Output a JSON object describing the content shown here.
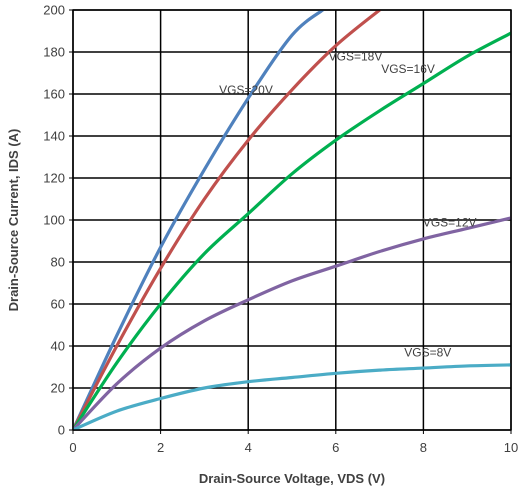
{
  "chart_data": {
    "type": "line",
    "title": "",
    "xlabel": "Drain-Source Voltage, VDS (V)",
    "ylabel": "Drain-Source Current, IDS (A)",
    "xlim": [
      0,
      10
    ],
    "ylim": [
      0,
      200
    ],
    "xticks": [
      0,
      2,
      4,
      6,
      8,
      10
    ],
    "yticks": [
      0,
      20,
      40,
      60,
      80,
      100,
      120,
      140,
      160,
      180,
      200
    ],
    "grid": true,
    "legend": "none",
    "series": [
      {
        "name": "VGS=20V",
        "color": "#4F81BD",
        "x": [
          0,
          1,
          2,
          3,
          4,
          5,
          5.7
        ],
        "y": [
          0,
          45,
          87,
          124,
          158,
          188,
          200
        ]
      },
      {
        "name": "VGS=18V",
        "color": "#C0504D",
        "x": [
          0,
          1,
          2,
          3,
          4,
          5,
          6,
          7
        ],
        "y": [
          0,
          40,
          77,
          110,
          138,
          162,
          183,
          200
        ]
      },
      {
        "name": "VGS=16V",
        "color": "#00B050",
        "x": [
          0,
          1,
          2,
          3,
          4,
          5,
          6,
          7,
          8,
          9,
          10
        ],
        "y": [
          0,
          32,
          60,
          84,
          103,
          122,
          138,
          152,
          165,
          178,
          189
        ]
      },
      {
        "name": "VGS=12V",
        "color": "#8064A2",
        "x": [
          0,
          1,
          2,
          3,
          4,
          5,
          6,
          7,
          8,
          9,
          10
        ],
        "y": [
          0,
          22,
          39,
          52,
          62,
          71,
          78,
          85,
          91,
          96,
          101
        ]
      },
      {
        "name": "VGS=8V",
        "color": "#4BACC6",
        "x": [
          0,
          1,
          2,
          3,
          4,
          5,
          6,
          7,
          8,
          9,
          10
        ],
        "y": [
          0,
          9,
          15,
          20,
          23,
          25,
          27,
          28.5,
          29.5,
          30.5,
          31
        ]
      }
    ]
  }
}
